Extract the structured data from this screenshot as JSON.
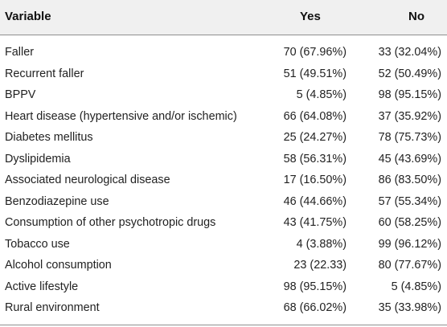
{
  "table": {
    "headers": {
      "variable": "Variable",
      "yes": "Yes",
      "no": "No"
    },
    "rows": [
      {
        "variable": "Faller",
        "yes": "70 (67.96%)",
        "no": "33 (32.04%)"
      },
      {
        "variable": "Recurrent faller",
        "yes": "51 (49.51%)",
        "no": "52 (50.49%)"
      },
      {
        "variable": "BPPV",
        "yes": "5 (4.85%)",
        "no": "98 (95.15%)"
      },
      {
        "variable": "Heart disease (hypertensive and/or ischemic)",
        "yes": "66 (64.08%)",
        "no": "37 (35.92%)"
      },
      {
        "variable": "Diabetes mellitus",
        "yes": "25 (24.27%)",
        "no": "78 (75.73%)"
      },
      {
        "variable": "Dyslipidemia",
        "yes": "58 (56.31%)",
        "no": "45 (43.69%)"
      },
      {
        "variable": "Associated neurological disease",
        "yes": "17 (16.50%)",
        "no": "86 (83.50%)"
      },
      {
        "variable": "Benzodiazepine use",
        "yes": "46 (44.66%)",
        "no": "57 (55.34%)"
      },
      {
        "variable": "Consumption of other psychotropic drugs",
        "yes": "43 (41.75%)",
        "no": "60 (58.25%)"
      },
      {
        "variable": "Tobacco use",
        "yes": "4 (3.88%)",
        "no": "99 (96.12%)"
      },
      {
        "variable": "Alcohol consumption",
        "yes": "23 (22.33)",
        "no": "80 (77.67%)"
      },
      {
        "variable": "Active lifestyle",
        "yes": "98 (95.15%)",
        "no": "5 (4.85%)"
      },
      {
        "variable": "Rural environment",
        "yes": "68 (66.02%)",
        "no": "35 (33.98%)"
      }
    ]
  }
}
